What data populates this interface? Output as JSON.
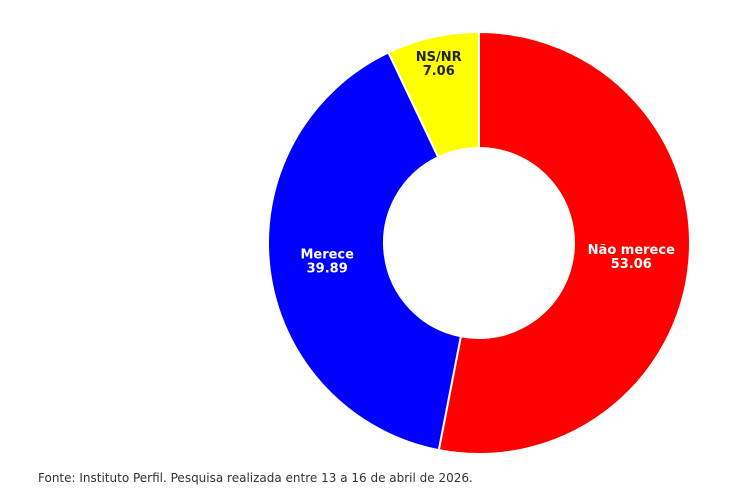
{
  "chart_data": {
    "type": "donut",
    "categories": [
      "Não merece",
      "Merece",
      "NS/NR"
    ],
    "values": [
      53.06,
      39.89,
      7.06
    ],
    "colors": [
      "#ff0000",
      "#0000ff",
      "#ffff00"
    ],
    "source": "Fonte: Instituto Perfil. Pesquisa realizada entre 13 a 16 de abril de 2026."
  }
}
